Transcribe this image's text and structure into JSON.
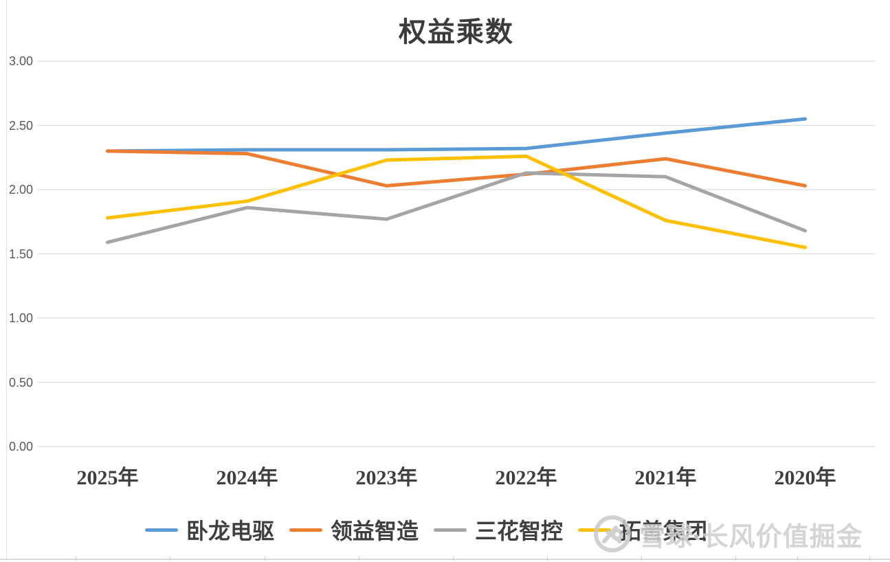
{
  "chart_data": {
    "type": "line",
    "title": "权益乘数",
    "categories": [
      "2025年",
      "2024年",
      "2023年",
      "2022年",
      "2021年",
      "2020年"
    ],
    "series": [
      {
        "name": "卧龙电驱",
        "color": "#5B9BD5",
        "values": [
          2.3,
          2.31,
          2.31,
          2.32,
          2.44,
          2.55
        ]
      },
      {
        "name": "领益智造",
        "color": "#ED7D31",
        "values": [
          2.3,
          2.28,
          2.03,
          2.12,
          2.24,
          2.03
        ]
      },
      {
        "name": "三花智控",
        "color": "#A5A5A5",
        "values": [
          1.59,
          1.86,
          1.77,
          2.13,
          2.1,
          1.68
        ]
      },
      {
        "name": "拓普集团",
        "color": "#FFC000",
        "values": [
          1.78,
          1.91,
          2.23,
          2.26,
          1.76,
          1.55
        ]
      }
    ],
    "xlabel": "",
    "ylabel": "",
    "ylim": [
      0.0,
      3.0
    ],
    "ytick_step": 0.5,
    "ytick_labels": [
      "3.00",
      "2.50",
      "2.00",
      "1.50",
      "1.00",
      "0.50",
      "0.00"
    ],
    "grid": true,
    "gridline_color": "#d9d9d9",
    "legend_position": "bottom",
    "line_width": 5
  },
  "watermark": {
    "logo": "xueqiu-snowball-icon",
    "text": "雪球·长风价值掘金",
    "color": "#cecece"
  }
}
